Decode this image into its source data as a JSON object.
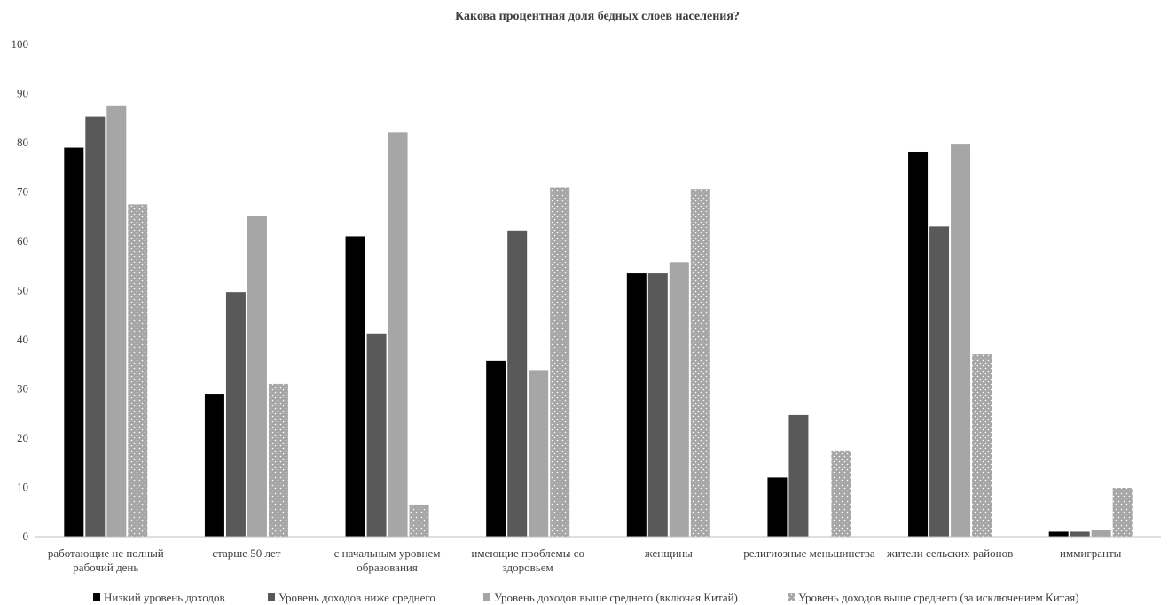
{
  "chart_data": {
    "type": "bar",
    "title": "Какова процентная доля бедных слоев населения?",
    "xlabel": "",
    "ylabel": "",
    "ylim": [
      0,
      100
    ],
    "yticks": [
      0,
      10,
      20,
      30,
      40,
      50,
      60,
      70,
      80,
      90,
      100
    ],
    "grid": false,
    "legend_position": "bottom",
    "categories": [
      [
        "работающие не полный",
        "рабочий день"
      ],
      [
        "старше 50 лет"
      ],
      [
        "с начальным уровнем",
        "образования"
      ],
      [
        "имеющие проблемы со",
        "здоровьем"
      ],
      [
        "женщины"
      ],
      [
        "религиозные меньшинства"
      ],
      [
        "жители сельских районов"
      ],
      [
        "иммигранты"
      ]
    ],
    "series": [
      {
        "name": "Низкий уровень доходов",
        "color": "#000000",
        "pattern": "solid",
        "values": [
          79,
          29,
          61,
          35.7,
          53.5,
          12,
          78.2,
          1
        ]
      },
      {
        "name": "Уровень доходов ниже среднего",
        "color": "#595959",
        "pattern": "solid",
        "values": [
          85.3,
          49.7,
          41.3,
          62.2,
          53.5,
          24.7,
          63,
          1
        ]
      },
      {
        "name": "Уровень доходов выше среднего (включая Китай)",
        "color": "#a6a6a6",
        "pattern": "solid",
        "values": [
          87.6,
          65.2,
          82.1,
          33.8,
          55.8,
          0,
          79.8,
          1.3
        ]
      },
      {
        "name": "Уровень доходов выше среднего (за исключением Китая)",
        "color": "#a6a6a6",
        "pattern": "dotted",
        "values": [
          67.5,
          31,
          6.5,
          70.9,
          70.6,
          17.5,
          37.1,
          9.9
        ]
      }
    ]
  }
}
